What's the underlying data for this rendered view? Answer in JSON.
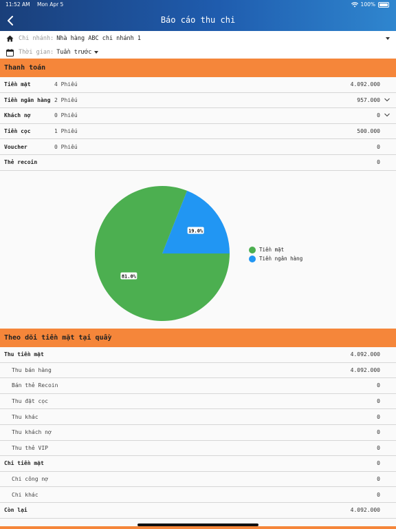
{
  "status_bar": {
    "time": "11:52 AM",
    "date": "Mon Apr 5",
    "battery": "100%"
  },
  "header": {
    "title": "Báo cáo thu chi",
    "back_icon": "chevron-left-icon"
  },
  "filters": {
    "branch_label": "Chi nhánh:",
    "branch_value": "Nhà hàng ABC chi nhánh 1",
    "time_label": "Thời gian:",
    "time_value": "Tuần trước"
  },
  "payment": {
    "title": "Thanh toán",
    "rows": [
      {
        "name": "Tiền mặt",
        "count": "4 Phiếu",
        "amount": "4.092.000",
        "expandable": false
      },
      {
        "name": "Tiền ngân hàng",
        "count": "2 Phiếu",
        "amount": "957.000",
        "expandable": true
      },
      {
        "name": "Khách nợ",
        "count": "0 Phiếu",
        "amount": "0",
        "expandable": true
      },
      {
        "name": "Tiền cọc",
        "count": "1 Phiếu",
        "amount": "500.000",
        "expandable": false
      },
      {
        "name": "Voucher",
        "count": "0 Phiếu",
        "amount": "0",
        "expandable": false
      },
      {
        "name": "Thẻ recoin",
        "count": "",
        "amount": "0",
        "expandable": false
      }
    ]
  },
  "chart_data": {
    "type": "pie",
    "slices": [
      {
        "label": "Tiền mặt",
        "value": 81.0,
        "display": "81.0%",
        "color": "#4caf50"
      },
      {
        "label": "Tiền ngân hàng",
        "value": 19.0,
        "display": "19.0%",
        "color": "#2196f3"
      }
    ],
    "legend_position": "right"
  },
  "cash_tracking": {
    "title": "Theo dõi tiền mặt tại quầy",
    "rows": [
      {
        "name": "Thu tiền mặt",
        "amount": "4.092.000",
        "level": 0
      },
      {
        "name": "Thu bán hàng",
        "amount": "4.092.000",
        "level": 1
      },
      {
        "name": "Bán thẻ Recoin",
        "amount": "0",
        "level": 1
      },
      {
        "name": "Thu đặt cọc",
        "amount": "0",
        "level": 1
      },
      {
        "name": "Thu khác",
        "amount": "0",
        "level": 1
      },
      {
        "name": "Thu khách nợ",
        "amount": "0",
        "level": 1
      },
      {
        "name": "Thu thẻ VIP",
        "amount": "0",
        "level": 1
      },
      {
        "name": "Chi tiền mặt",
        "amount": "0",
        "level": 0
      },
      {
        "name": "Chi công nợ",
        "amount": "0",
        "level": 1
      },
      {
        "name": "Chi khác",
        "amount": "0",
        "level": 1
      },
      {
        "name": "Còn lại",
        "amount": "4.092.000",
        "level": 0
      }
    ]
  },
  "colors": {
    "header_start": "#1a3f7a",
    "header_end": "#2f86cf",
    "section": "#f5863a"
  }
}
